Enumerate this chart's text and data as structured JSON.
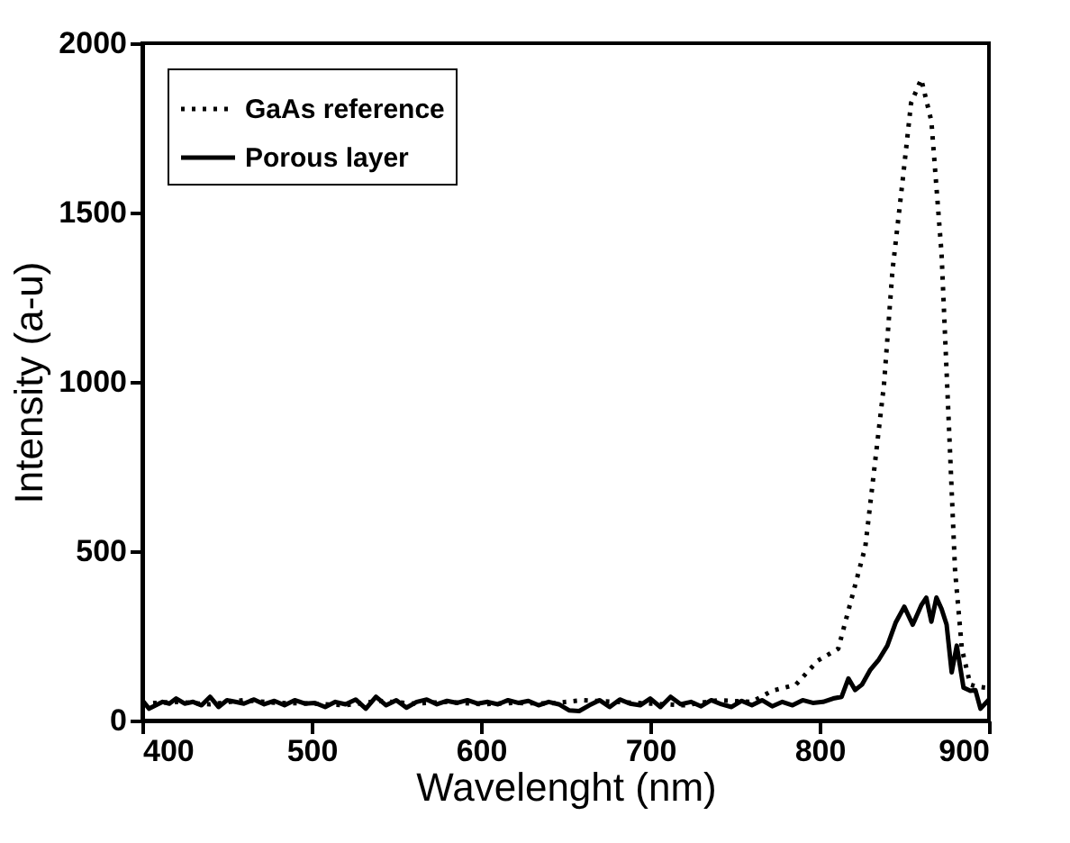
{
  "chart_data": {
    "type": "line",
    "xlabel": "Wavelenght (nm)",
    "ylabel": "Intensity (a-u)",
    "xlim": [
      400,
      900
    ],
    "ylim": [
      0,
      2000
    ],
    "xticks": [
      400,
      500,
      600,
      700,
      800,
      900
    ],
    "yticks": [
      0,
      500,
      1000,
      1500,
      2000
    ],
    "grid": false,
    "legend": "top left",
    "marker": "none",
    "series": [
      {
        "name": "GaAs reference",
        "color": "#000000",
        "line_style": "dotted",
        "x": [
          400,
          420,
          440,
          460,
          480,
          500,
          520,
          540,
          560,
          580,
          600,
          620,
          640,
          660,
          680,
          700,
          720,
          740,
          760,
          772,
          786,
          799,
          811,
          827,
          838,
          843,
          849,
          854,
          860,
          866,
          872,
          877,
          880,
          884,
          889,
          893,
          898,
          900
        ],
        "values": [
          50,
          55,
          48,
          60,
          52,
          50,
          45,
          58,
          50,
          55,
          48,
          52,
          50,
          60,
          55,
          50,
          45,
          60,
          55,
          88,
          106,
          177,
          212,
          513,
          991,
          1327,
          1593,
          1823,
          1894,
          1770,
          1380,
          796,
          442,
          212,
          106,
          100,
          97,
          100
        ]
      },
      {
        "name": "Porous layer",
        "color": "#000000",
        "line_style": "solid",
        "x": [
          400,
          404,
          408,
          412,
          416,
          420,
          425,
          430,
          435,
          440,
          445,
          450,
          455,
          460,
          466,
          472,
          478,
          484,
          490,
          496,
          502,
          508,
          514,
          520,
          526,
          532,
          538,
          544,
          550,
          556,
          562,
          568,
          574,
          580,
          586,
          592,
          598,
          604,
          610,
          616,
          622,
          628,
          634,
          640,
          646,
          652,
          658,
          664,
          670,
          676,
          682,
          688,
          694,
          700,
          706,
          712,
          718,
          724,
          730,
          736,
          742,
          748,
          754,
          760,
          766,
          772,
          778,
          784,
          790,
          796,
          802,
          808,
          813,
          817,
          821,
          825,
          830,
          835,
          840,
          845,
          850,
          855,
          860,
          863,
          866,
          869,
          872,
          875,
          878,
          881,
          885,
          889,
          892,
          895,
          900
        ],
        "values": [
          60,
          35,
          45,
          55,
          50,
          65,
          50,
          55,
          45,
          70,
          40,
          60,
          55,
          50,
          62,
          48,
          58,
          45,
          60,
          50,
          52,
          40,
          55,
          48,
          62,
          35,
          70,
          45,
          60,
          38,
          55,
          62,
          48,
          58,
          52,
          60,
          50,
          55,
          48,
          60,
          52,
          58,
          45,
          55,
          48,
          30,
          28,
          45,
          60,
          40,
          62,
          50,
          45,
          65,
          40,
          70,
          48,
          55,
          42,
          60,
          48,
          40,
          58,
          45,
          60,
          42,
          55,
          45,
          60,
          52,
          55,
          65,
          70,
          124,
          90,
          106,
          150,
          180,
          221,
          290,
          336,
          283,
          340,
          363,
          292,
          363,
          330,
          283,
          142,
          221,
          97,
          88,
          90,
          35,
          62
        ]
      }
    ]
  }
}
